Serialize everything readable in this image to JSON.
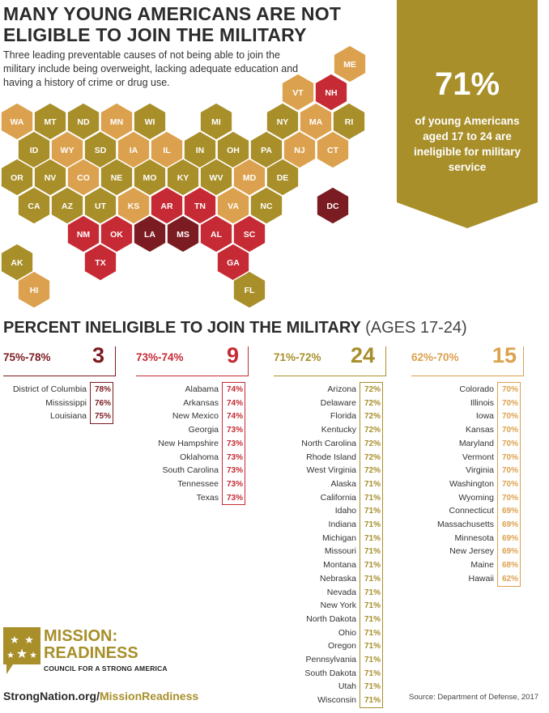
{
  "title": {
    "line1": "MANY YOUNG AMERICANS ARE NOT",
    "line2": "ELIGIBLE TO JOIN THE MILITARY"
  },
  "subtitle": "Three leading preventable causes of not being able to join the military include being overweight, lacking adequate education and having a history of crime or drug use.",
  "badge": {
    "big": "71%",
    "text": "of young Americans aged 17 to 24 are ineligible for military service"
  },
  "colors": {
    "gold": "#a88f2a",
    "light": "#dca14e",
    "red": "#c62a34",
    "dark": "#7b1c22",
    "heading": "#2b2b2b"
  },
  "map": {
    "hexes": [
      {
        "label": "ME",
        "c": "light"
      },
      {
        "label": "VT",
        "c": "light"
      },
      {
        "label": "NH",
        "c": "red"
      },
      {
        "label": "WA",
        "c": "light"
      },
      {
        "label": "MT",
        "c": "gold"
      },
      {
        "label": "ND",
        "c": "gold"
      },
      {
        "label": "MN",
        "c": "light"
      },
      {
        "label": "WI",
        "c": "gold"
      },
      {
        "label": "MI",
        "c": "gold"
      },
      {
        "label": "NY",
        "c": "gold"
      },
      {
        "label": "MA",
        "c": "light"
      },
      {
        "label": "RI",
        "c": "gold"
      },
      {
        "label": "ID",
        "c": "gold"
      },
      {
        "label": "WY",
        "c": "light"
      },
      {
        "label": "SD",
        "c": "gold"
      },
      {
        "label": "IA",
        "c": "light"
      },
      {
        "label": "IL",
        "c": "light"
      },
      {
        "label": "IN",
        "c": "gold"
      },
      {
        "label": "OH",
        "c": "gold"
      },
      {
        "label": "PA",
        "c": "gold"
      },
      {
        "label": "NJ",
        "c": "light"
      },
      {
        "label": "CT",
        "c": "light"
      },
      {
        "label": "OR",
        "c": "gold"
      },
      {
        "label": "NV",
        "c": "gold"
      },
      {
        "label": "CO",
        "c": "light"
      },
      {
        "label": "NE",
        "c": "gold"
      },
      {
        "label": "MO",
        "c": "gold"
      },
      {
        "label": "KY",
        "c": "gold"
      },
      {
        "label": "WV",
        "c": "gold"
      },
      {
        "label": "MD",
        "c": "light"
      },
      {
        "label": "DE",
        "c": "gold"
      },
      {
        "label": "CA",
        "c": "gold"
      },
      {
        "label": "AZ",
        "c": "gold"
      },
      {
        "label": "UT",
        "c": "gold"
      },
      {
        "label": "KS",
        "c": "light"
      },
      {
        "label": "AR",
        "c": "red"
      },
      {
        "label": "TN",
        "c": "red"
      },
      {
        "label": "VA",
        "c": "light"
      },
      {
        "label": "NC",
        "c": "gold"
      },
      {
        "label": "DC",
        "c": "dark"
      },
      {
        "label": "NM",
        "c": "red"
      },
      {
        "label": "OK",
        "c": "red"
      },
      {
        "label": "LA",
        "c": "dark"
      },
      {
        "label": "MS",
        "c": "dark"
      },
      {
        "label": "AL",
        "c": "red"
      },
      {
        "label": "SC",
        "c": "red"
      },
      {
        "label": "TX",
        "c": "red"
      },
      {
        "label": "GA",
        "c": "red"
      },
      {
        "label": "AK",
        "c": "gold"
      },
      {
        "label": "HI",
        "c": "light"
      },
      {
        "label": "FL",
        "c": "gold"
      }
    ]
  },
  "section": {
    "title": "PERCENT INELIGIBLE TO JOIN THE MILITARY",
    "sub": "(AGES 17-24)"
  },
  "chart_data": {
    "type": "table",
    "title": "PERCENT INELIGIBLE TO JOIN THE MILITARY (AGES 17-24)",
    "groups": [
      {
        "range": "75%-78%",
        "count": "3",
        "color": "dark",
        "rows": [
          [
            "District of Columbia",
            "78%"
          ],
          [
            "Mississippi",
            "76%"
          ],
          [
            "Louisiana",
            "75%"
          ]
        ]
      },
      {
        "range": "73%-74%",
        "count": "9",
        "color": "red",
        "rows": [
          [
            "Alabama",
            "74%"
          ],
          [
            "Arkansas",
            "74%"
          ],
          [
            "New Mexico",
            "74%"
          ],
          [
            "Georgia",
            "73%"
          ],
          [
            "New Hampshire",
            "73%"
          ],
          [
            "Oklahoma",
            "73%"
          ],
          [
            "South Carolina",
            "73%"
          ],
          [
            "Tennessee",
            "73%"
          ],
          [
            "Texas",
            "73%"
          ]
        ]
      },
      {
        "range": "71%-72%",
        "count": "24",
        "color": "gold",
        "rows": [
          [
            "Arizona",
            "72%"
          ],
          [
            "Delaware",
            "72%"
          ],
          [
            "Florida",
            "72%"
          ],
          [
            "Kentucky",
            "72%"
          ],
          [
            "North Carolina",
            "72%"
          ],
          [
            "Rhode Island",
            "72%"
          ],
          [
            "West Virginia",
            "72%"
          ],
          [
            "Alaska",
            "71%"
          ],
          [
            "California",
            "71%"
          ],
          [
            "Idaho",
            "71%"
          ],
          [
            "Indiana",
            "71%"
          ],
          [
            "Michigan",
            "71%"
          ],
          [
            "Missouri",
            "71%"
          ],
          [
            "Montana",
            "71%"
          ],
          [
            "Nebraska",
            "71%"
          ],
          [
            "Nevada",
            "71%"
          ],
          [
            "New York",
            "71%"
          ],
          [
            "North Dakota",
            "71%"
          ],
          [
            "Ohio",
            "71%"
          ],
          [
            "Oregon",
            "71%"
          ],
          [
            "Pennsylvania",
            "71%"
          ],
          [
            "South Dakota",
            "71%"
          ],
          [
            "Utah",
            "71%"
          ],
          [
            "Wisconsin",
            "71%"
          ]
        ]
      },
      {
        "range": "62%-70%",
        "count": "15",
        "color": "light",
        "rows": [
          [
            "Colorado",
            "70%"
          ],
          [
            "Illinois",
            "70%"
          ],
          [
            "Iowa",
            "70%"
          ],
          [
            "Kansas",
            "70%"
          ],
          [
            "Maryland",
            "70%"
          ],
          [
            "Vermont",
            "70%"
          ],
          [
            "Virginia",
            "70%"
          ],
          [
            "Washington",
            "70%"
          ],
          [
            "Wyoming",
            "70%"
          ],
          [
            "Connecticut",
            "69%"
          ],
          [
            "Massachusetts",
            "69%"
          ],
          [
            "Minnesota",
            "69%"
          ],
          [
            "New Jersey",
            "69%"
          ],
          [
            "Maine",
            "68%"
          ],
          [
            "Hawaii",
            "62%"
          ]
        ]
      }
    ]
  },
  "logo": {
    "line1": "MISSION:",
    "line2": "READINESS",
    "line3": "COUNCIL FOR A STRONG AMERICA"
  },
  "url": {
    "part1": "StrongNation.org/",
    "part2": "MissionReadiness"
  },
  "source": "Source: Department of Defense, 2017"
}
